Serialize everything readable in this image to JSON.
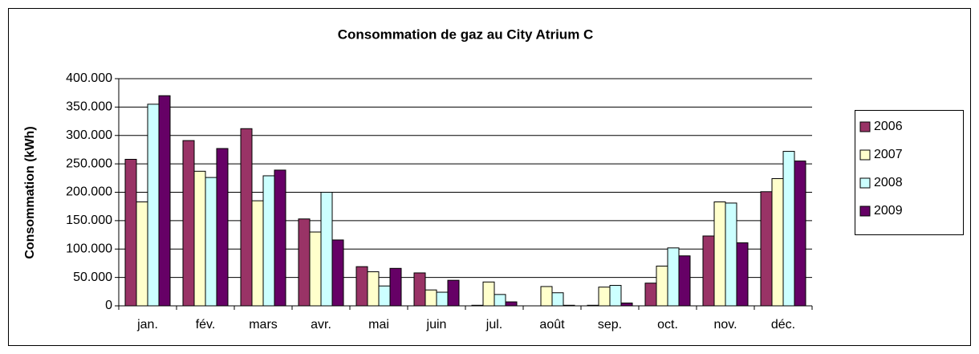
{
  "chart_data": {
    "type": "bar",
    "title": "Consommation de gaz au City Atrium C",
    "y_label": "Consommation (kWh)",
    "categories": [
      "jan.",
      "fév.",
      "mars",
      "avr.",
      "mai",
      "juin",
      "jul.",
      "août",
      "sep.",
      "oct.",
      "nov.",
      "déc."
    ],
    "series": [
      {
        "name": "2006",
        "color": "#993366",
        "values": [
          258000,
          291000,
          312000,
          153000,
          69000,
          58000,
          1000,
          0,
          1000,
          40000,
          123000,
          201000
        ]
      },
      {
        "name": "2007",
        "color": "#ffffcc",
        "values": [
          183000,
          237000,
          185000,
          130000,
          60000,
          28000,
          42000,
          34000,
          33000,
          70000,
          183000,
          224000
        ]
      },
      {
        "name": "2008",
        "color": "#ccffff",
        "values": [
          355000,
          226000,
          229000,
          200000,
          35000,
          24000,
          20000,
          23000,
          36000,
          102000,
          181000,
          272000
        ]
      },
      {
        "name": "2009",
        "color": "#660066",
        "values": [
          370000,
          277000,
          239000,
          116000,
          66000,
          45000,
          7000,
          1000,
          5000,
          88000,
          111000,
          255000
        ]
      }
    ],
    "ylim": [
      0,
      400000
    ],
    "yticks": [
      0,
      {
        "value": 50000,
        "label": "50.000"
      },
      {
        "value": 100000,
        "label": "100.000"
      },
      {
        "value": 150000,
        "label": "150.000"
      },
      {
        "value": 200000,
        "label": "200.000"
      },
      {
        "value": 250000,
        "label": "250.000"
      },
      {
        "value": 300000,
        "label": "300.000"
      },
      {
        "value": 350000,
        "label": "350.000"
      },
      {
        "value": 400000,
        "label": "400.000"
      }
    ],
    "grid": true,
    "legend": "right"
  }
}
